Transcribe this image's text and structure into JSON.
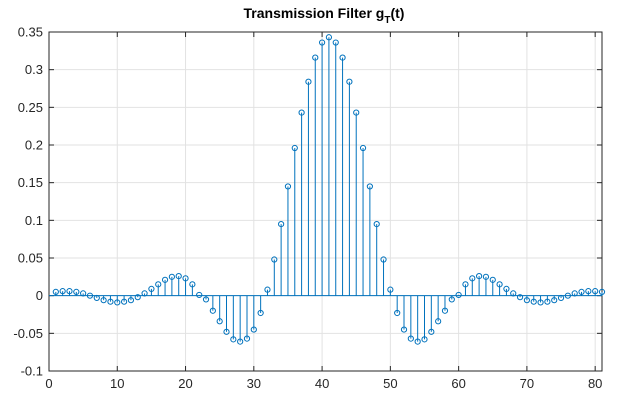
{
  "chart_data": {
    "type": "stem",
    "title": "Transmission Filter g",
    "title_subscript": "T",
    "title_suffix": "(t)",
    "xlabel": "",
    "ylabel": "",
    "xlim": [
      0,
      81
    ],
    "ylim": [
      -0.1,
      0.35
    ],
    "grid": true,
    "x_ticks": [
      0,
      10,
      20,
      30,
      40,
      50,
      60,
      70,
      80
    ],
    "x_tick_labels": [
      "0",
      "10",
      "20",
      "30",
      "40",
      "50",
      "60",
      "70",
      "80"
    ],
    "y_ticks": [
      0.35,
      0.3,
      0.25,
      0.2,
      0.15,
      0.1,
      0.05,
      0,
      -0.05,
      -0.1
    ],
    "y_tick_labels": [
      "0.35",
      "0.3",
      "0.25",
      "0.2",
      "0.15",
      "0.1",
      "0.05",
      "0",
      "-0.05",
      "-0.1"
    ],
    "series_color": "#0072BD",
    "x": [
      1,
      2,
      3,
      4,
      5,
      6,
      7,
      8,
      9,
      10,
      11,
      12,
      13,
      14,
      15,
      16,
      17,
      18,
      19,
      20,
      21,
      22,
      23,
      24,
      25,
      26,
      27,
      28,
      29,
      30,
      31,
      32,
      33,
      34,
      35,
      36,
      37,
      38,
      39,
      40,
      41,
      42,
      43,
      44,
      45,
      46,
      47,
      48,
      49,
      50,
      51,
      52,
      53,
      54,
      55,
      56,
      57,
      58,
      59,
      60,
      61,
      62,
      63,
      64,
      65,
      66,
      67,
      68,
      69,
      70,
      71,
      72,
      73,
      74,
      75,
      76,
      77,
      78,
      79,
      80,
      81
    ],
    "y": [
      0.005,
      0.006,
      0.006,
      0.005,
      0.003,
      0.0,
      -0.003,
      -0.006,
      -0.008,
      -0.009,
      -0.008,
      -0.006,
      -0.002,
      0.003,
      0.009,
      0.015,
      0.021,
      0.025,
      0.026,
      0.023,
      0.015,
      0.001,
      -0.005,
      -0.02,
      -0.034,
      -0.048,
      -0.058,
      -0.061,
      -0.057,
      -0.045,
      -0.023,
      0.008,
      0.048,
      0.095,
      0.145,
      0.196,
      0.243,
      0.284,
      0.316,
      0.336,
      0.343,
      0.336,
      0.316,
      0.284,
      0.243,
      0.196,
      0.145,
      0.095,
      0.048,
      0.008,
      -0.023,
      -0.045,
      -0.057,
      -0.061,
      -0.058,
      -0.048,
      -0.034,
      -0.02,
      -0.005,
      0.001,
      0.015,
      0.023,
      0.026,
      0.025,
      0.021,
      0.015,
      0.009,
      0.003,
      -0.002,
      -0.006,
      -0.008,
      -0.009,
      -0.008,
      -0.006,
      -0.003,
      0.0,
      0.003,
      0.005,
      0.006,
      0.006,
      0.005
    ]
  }
}
